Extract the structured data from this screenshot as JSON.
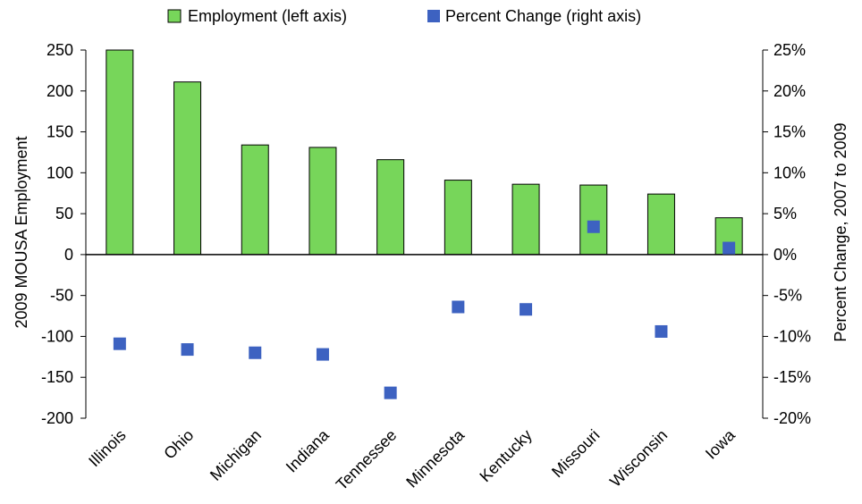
{
  "chart_data": {
    "type": "bar",
    "categories": [
      "Illinois",
      "Ohio",
      "Michigan",
      "Indiana",
      "Tennessee",
      "Minnesota",
      "Kentucky",
      "Missouri",
      "Wisconsin",
      "Iowa"
    ],
    "series": [
      {
        "name": "Employment (left axis)",
        "type": "bar",
        "axis": "left",
        "color": "#77d65a",
        "values": [
          250,
          211,
          134,
          131,
          116,
          91,
          86,
          85,
          74,
          45
        ]
      },
      {
        "name": "Percent Change (right axis)",
        "type": "scatter",
        "axis": "right",
        "color": "#3d62c1",
        "values": [
          -10.9,
          -11.6,
          -12.0,
          -12.2,
          -16.9,
          -6.4,
          -6.7,
          3.4,
          -9.4,
          0.8
        ]
      }
    ],
    "ylabel": "2009 MOUSA Employment",
    "ylabel_right": "Percent Change, 2007 to 2009",
    "ylim": [
      -200,
      250
    ],
    "ylim_right": [
      -20,
      25
    ],
    "yticks": [
      "250",
      "200",
      "150",
      "100",
      "50",
      "0",
      "-50",
      "-100",
      "-150",
      "-200"
    ],
    "yticks_right": [
      "25%",
      "20%",
      "15%",
      "10%",
      "5%",
      "0%",
      "-5%",
      "-10%",
      "-15%",
      "-20%"
    ],
    "grid": false,
    "legend_position": "top"
  }
}
